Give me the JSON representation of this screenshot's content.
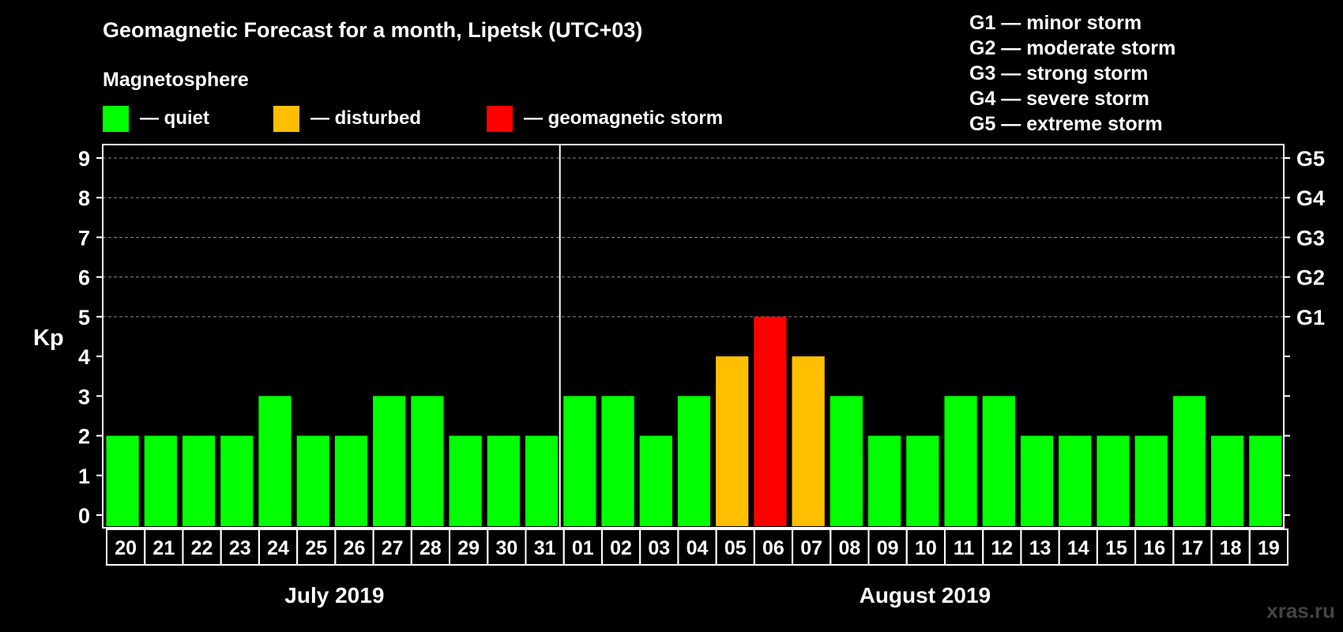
{
  "chart_data": {
    "type": "bar",
    "title": "Geomagnetic Forecast for a month, Lipetsk (UTC+03)",
    "legend_title": "Magnetosphere",
    "legend": [
      {
        "key": "quiet",
        "label": "— quiet",
        "color": "#00ff00"
      },
      {
        "key": "disturbed",
        "label": "— disturbed",
        "color": "#ffbf00"
      },
      {
        "key": "storm",
        "label": "— geomagnetic storm",
        "color": "#ff0000"
      }
    ],
    "storm_scale": [
      "G1 — minor storm",
      "G2 — moderate storm",
      "G3 — strong storm",
      "G4 — severe storm",
      "G5 — extreme storm"
    ],
    "ylabel": "Kp",
    "ylim": [
      0,
      9
    ],
    "yticks": [
      "0",
      "1",
      "2",
      "3",
      "4",
      "5",
      "6",
      "7",
      "8",
      "9"
    ],
    "right_labels": [
      {
        "value": 5,
        "label": "G1"
      },
      {
        "value": 6,
        "label": "G2"
      },
      {
        "value": 7,
        "label": "G3"
      },
      {
        "value": 8,
        "label": "G4"
      },
      {
        "value": 9,
        "label": "G5"
      }
    ],
    "categories": [
      "20",
      "21",
      "22",
      "23",
      "24",
      "25",
      "26",
      "27",
      "28",
      "29",
      "30",
      "31",
      "01",
      "02",
      "03",
      "04",
      "05",
      "06",
      "07",
      "08",
      "09",
      "10",
      "11",
      "12",
      "13",
      "14",
      "15",
      "16",
      "17",
      "18",
      "19"
    ],
    "values": [
      2,
      2,
      2,
      2,
      3,
      2,
      2,
      3,
      3,
      2,
      2,
      2,
      3,
      3,
      2,
      3,
      4,
      5,
      4,
      3,
      2,
      2,
      3,
      3,
      2,
      2,
      2,
      2,
      3,
      2,
      2
    ],
    "status": [
      "quiet",
      "quiet",
      "quiet",
      "quiet",
      "quiet",
      "quiet",
      "quiet",
      "quiet",
      "quiet",
      "quiet",
      "quiet",
      "quiet",
      "quiet",
      "quiet",
      "quiet",
      "quiet",
      "disturbed",
      "storm",
      "disturbed",
      "quiet",
      "quiet",
      "quiet",
      "quiet",
      "quiet",
      "quiet",
      "quiet",
      "quiet",
      "quiet",
      "quiet",
      "quiet",
      "quiet"
    ],
    "months": [
      {
        "label": "July 2019",
        "count": 12
      },
      {
        "label": "August 2019",
        "count": 19
      }
    ]
  },
  "watermark": "xras.ru"
}
